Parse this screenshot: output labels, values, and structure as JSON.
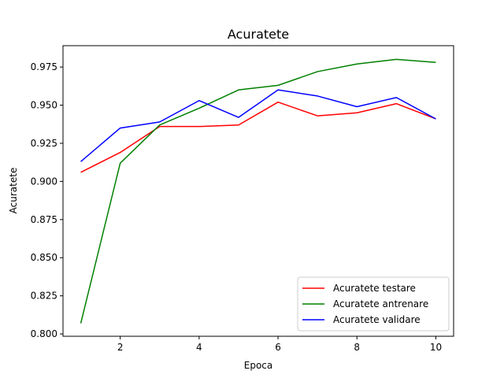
{
  "chart_data": {
    "type": "line",
    "title": "Acuratete",
    "xlabel": "Epoca",
    "ylabel": "Acuratete",
    "xlim": [
      0.55,
      10.45
    ],
    "ylim": [
      0.7985,
      0.989
    ],
    "x_ticks": [
      2,
      4,
      6,
      8,
      10
    ],
    "x_tick_labels": [
      "2",
      "4",
      "6",
      "8",
      "10"
    ],
    "y_ticks": [
      0.8,
      0.825,
      0.85,
      0.875,
      0.9,
      0.925,
      0.95,
      0.975
    ],
    "y_tick_labels": [
      "0.800",
      "0.825",
      "0.850",
      "0.875",
      "0.900",
      "0.925",
      "0.950",
      "0.975"
    ],
    "grid": false,
    "legend_position": "lower-right",
    "x": [
      1,
      2,
      3,
      4,
      5,
      6,
      7,
      8,
      9,
      10
    ],
    "series": [
      {
        "name": "Acuratete testare",
        "color": "#ff0000",
        "values": [
          0.906,
          0.919,
          0.936,
          0.936,
          0.937,
          0.952,
          0.943,
          0.945,
          0.951,
          0.941
        ]
      },
      {
        "name": "Acuratete antrenare",
        "color": "#008000",
        "values": [
          0.807,
          0.912,
          0.937,
          0.948,
          0.96,
          0.963,
          0.972,
          0.977,
          0.98,
          0.978
        ]
      },
      {
        "name": "Acuratete validare",
        "color": "#0000ff",
        "values": [
          0.913,
          0.935,
          0.939,
          0.953,
          0.942,
          0.96,
          0.956,
          0.949,
          0.955,
          0.941
        ]
      }
    ]
  }
}
